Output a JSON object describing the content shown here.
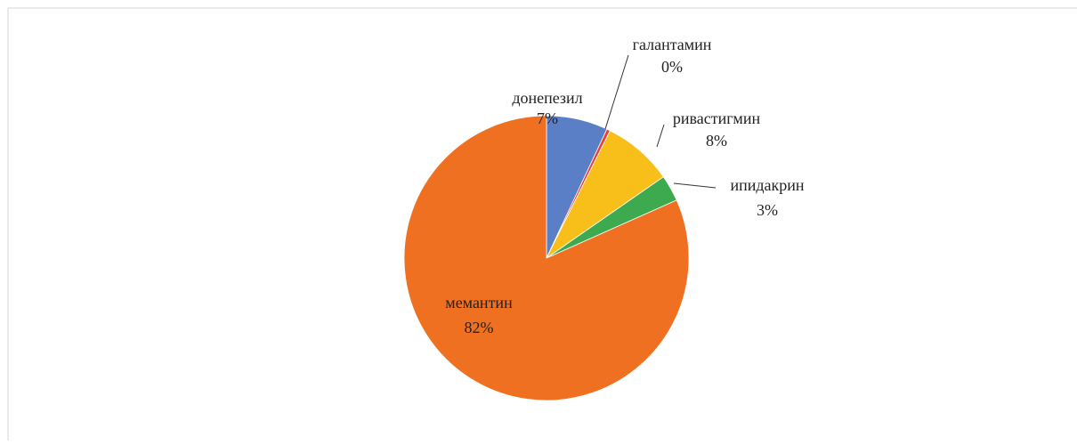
{
  "chart_data": {
    "type": "pie",
    "categories": [
      "донепезил",
      "галантамин",
      "ривастигмин",
      "ипидакрин",
      "мемантин"
    ],
    "values": [
      7,
      0.4,
      8,
      3,
      82
    ],
    "value_labels": [
      "7%",
      "0%",
      "8%",
      "3%",
      "82%"
    ],
    "colors": [
      "#5b7fc7",
      "#e8413a",
      "#f8bf1a",
      "#3eaa4f",
      "#f07022"
    ]
  }
}
